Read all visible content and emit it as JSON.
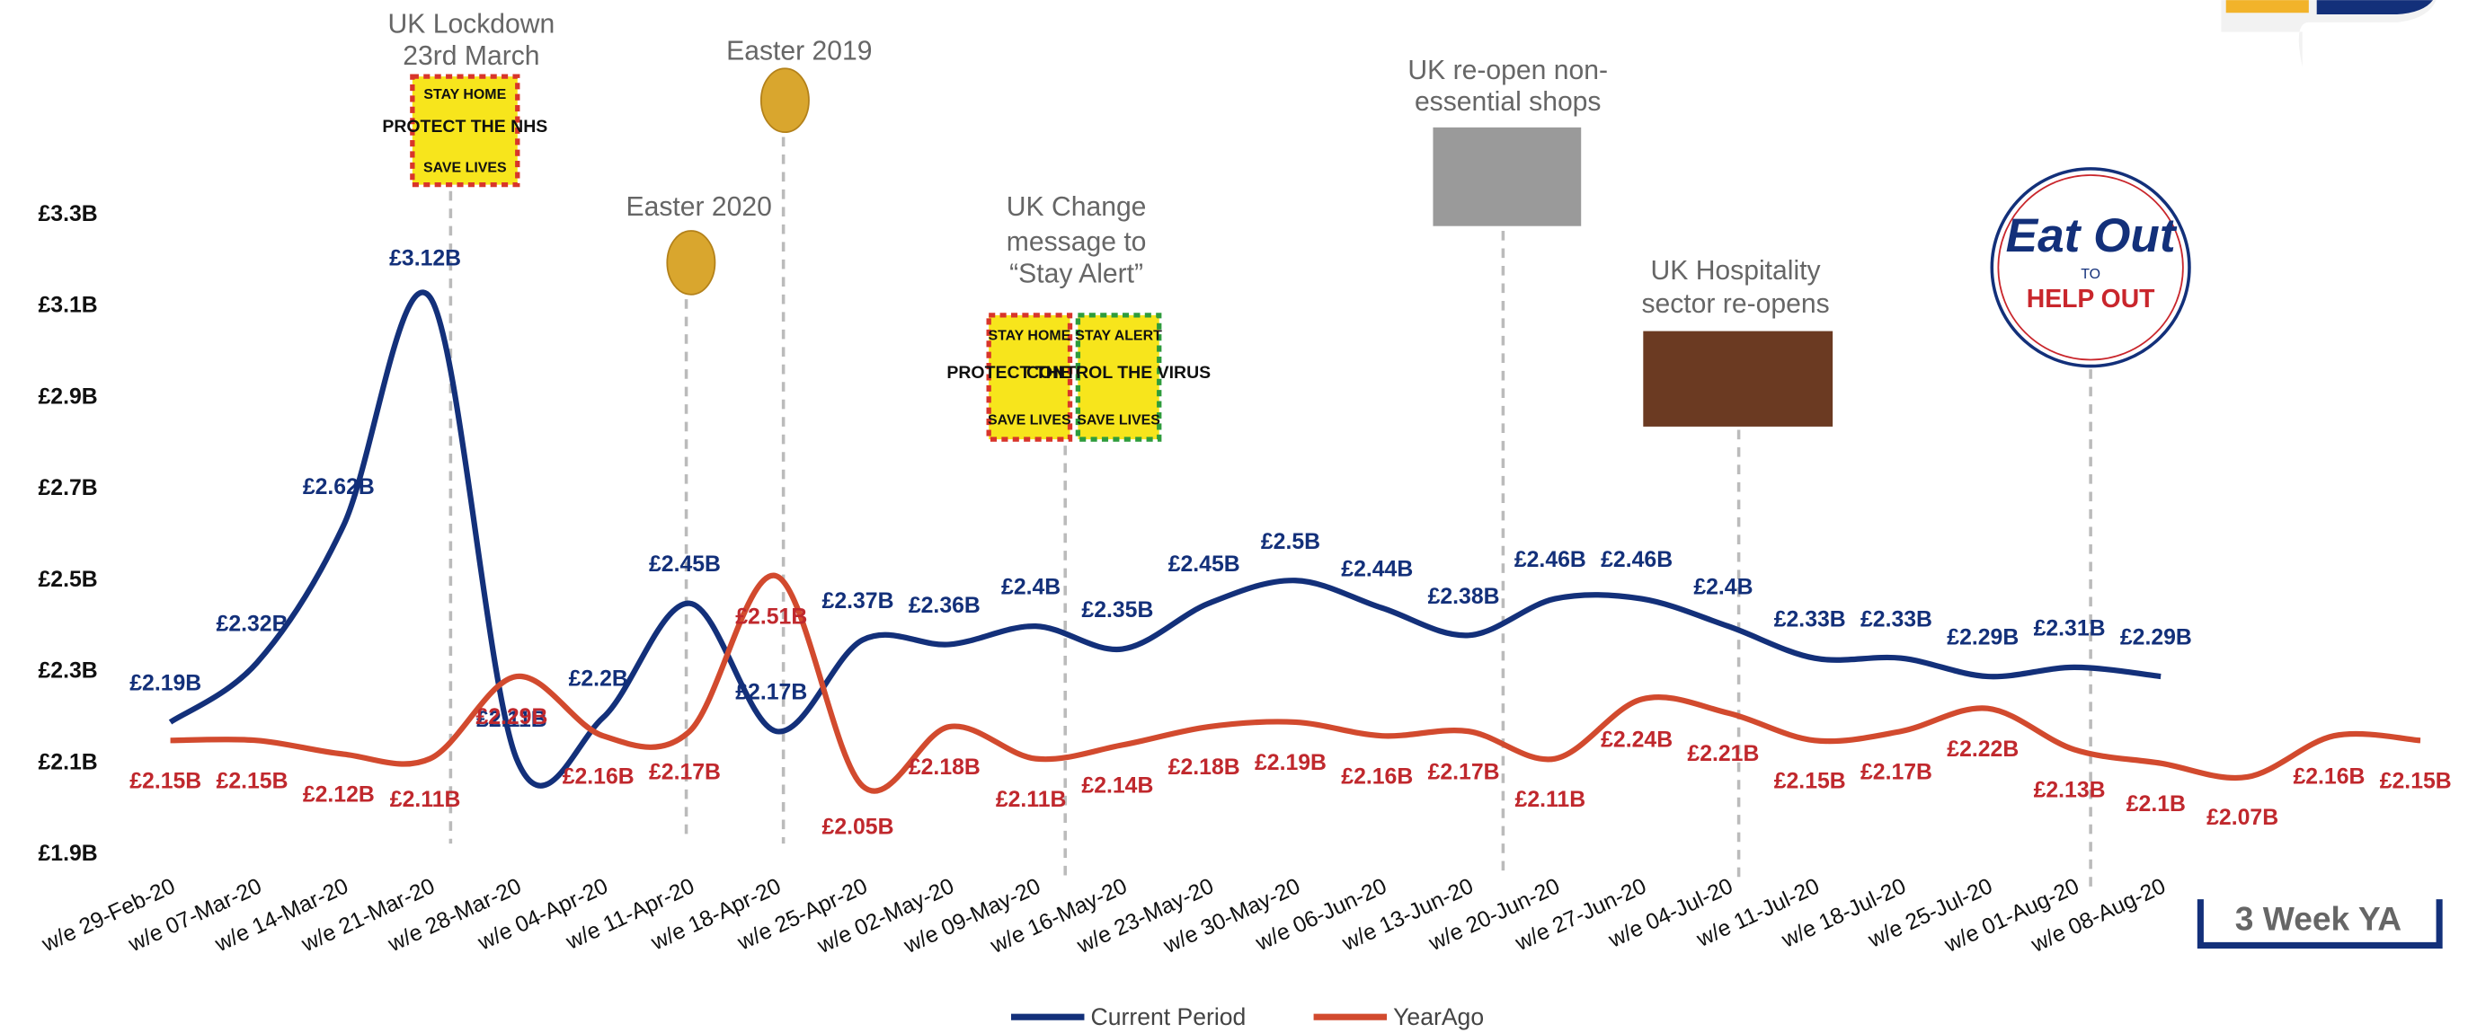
{
  "chart_data": {
    "type": "line",
    "categories": [
      "w/e 29-Feb-20",
      "w/e 07-Mar-20",
      "w/e 14-Mar-20",
      "w/e 21-Mar-20",
      "w/e 28-Mar-20",
      "w/e 04-Apr-20",
      "w/e 11-Apr-20",
      "w/e 18-Apr-20",
      "w/e 25-Apr-20",
      "w/e 02-May-20",
      "w/e 09-May-20",
      "w/e 16-May-20",
      "w/e 23-May-20",
      "w/e 30-May-20",
      "w/e 06-Jun-20",
      "w/e 13-Jun-20",
      "w/e 20-Jun-20",
      "w/e 27-Jun-20",
      "w/e 04-Jul-20",
      "w/e 11-Jul-20",
      "w/e 18-Jul-20",
      "w/e 25-Jul-20",
      "w/e 01-Aug-20",
      "w/e 08-Aug-20",
      null,
      null,
      null
    ],
    "series": [
      {
        "name": "Current Period",
        "color": "#13307a",
        "values": [
          2.19,
          2.32,
          2.62,
          3.12,
          2.11,
          2.2,
          2.45,
          2.17,
          2.37,
          2.36,
          2.4,
          2.35,
          2.45,
          2.5,
          2.44,
          2.38,
          2.46,
          2.46,
          2.4,
          2.33,
          2.33,
          2.29,
          2.31,
          2.29,
          null,
          null,
          null
        ],
        "value_labels": [
          "£2.19B",
          "£2.32B",
          "£2.62B",
          "£3.12B",
          "£2.11B",
          "£2.2B",
          "£2.45B",
          "£2.17B",
          "£2.37B",
          "£2.36B",
          "£2.4B",
          "£2.35B",
          "£2.45B",
          "£2.5B",
          "£2.44B",
          "£2.38B",
          "£2.46B",
          "£2.46B",
          "£2.4B",
          "£2.33B",
          "£2.33B",
          "£2.29B",
          "£2.31B",
          "£2.29B",
          null,
          null,
          null
        ]
      },
      {
        "name": "YearAgo",
        "color": "#d24a2e",
        "values": [
          2.15,
          2.15,
          2.12,
          2.11,
          2.29,
          2.16,
          2.17,
          2.51,
          2.05,
          2.18,
          2.11,
          2.14,
          2.18,
          2.19,
          2.16,
          2.17,
          2.11,
          2.24,
          2.21,
          2.15,
          2.17,
          2.22,
          2.13,
          2.1,
          2.07,
          2.16,
          2.15
        ],
        "value_labels": [
          "£2.15B",
          "£2.15B",
          "£2.12B",
          "£2.11B",
          "£2.29B",
          "£2.16B",
          "£2.17B",
          "£2.51B",
          "£2.05B",
          "£2.18B",
          "£2.11B",
          "£2.14B",
          "£2.18B",
          "£2.19B",
          "£2.16B",
          "£2.17B",
          "£2.11B",
          "£2.24B",
          "£2.21B",
          "£2.15B",
          "£2.17B",
          "£2.22B",
          "£2.13B",
          "£2.1B",
          "£2.07B",
          "£2.16B",
          "£2.15B"
        ]
      }
    ],
    "ylim": [
      1.9,
      3.3
    ],
    "yticks": [
      {
        "value": 1.9,
        "label": "£1.9B"
      },
      {
        "value": 2.1,
        "label": "£2.1B"
      },
      {
        "value": 2.3,
        "label": "£2.3B"
      },
      {
        "value": 2.5,
        "label": "£2.5B"
      },
      {
        "value": 2.7,
        "label": "£2.7B"
      },
      {
        "value": 2.9,
        "label": "£2.9B"
      },
      {
        "value": 3.1,
        "label": "£3.1B"
      },
      {
        "value": 3.3,
        "label": "£3.3B"
      }
    ],
    "legend": "bottom",
    "annotations": [
      {
        "lines": [
          "UK Lockdown",
          "23rd March"
        ],
        "badge": [
          "STAY HOME",
          "PROTECT THE NHS",
          "SAVE LIVES"
        ]
      },
      {
        "lines": [
          "Easter 2020"
        ]
      },
      {
        "lines": [
          "Easter 2019"
        ]
      },
      {
        "lines": [
          "UK Change",
          "message to",
          "“Stay Alert”"
        ],
        "badge": [
          "STAY HOME",
          "PROTECT THE NHS",
          "SAVE LIVES",
          "STAY ALERT",
          "CONTROL THE VIRUS",
          "SAVE LIVES"
        ]
      },
      {
        "lines": [
          "UK re-open non-",
          "essential shops"
        ]
      },
      {
        "lines": [
          "UK Hospitality",
          "sector re-opens"
        ]
      },
      {
        "lines": [],
        "badge": [
          "Eat Out",
          "TO",
          "HELP OUT"
        ]
      }
    ],
    "period_label": "3 Week YA"
  }
}
